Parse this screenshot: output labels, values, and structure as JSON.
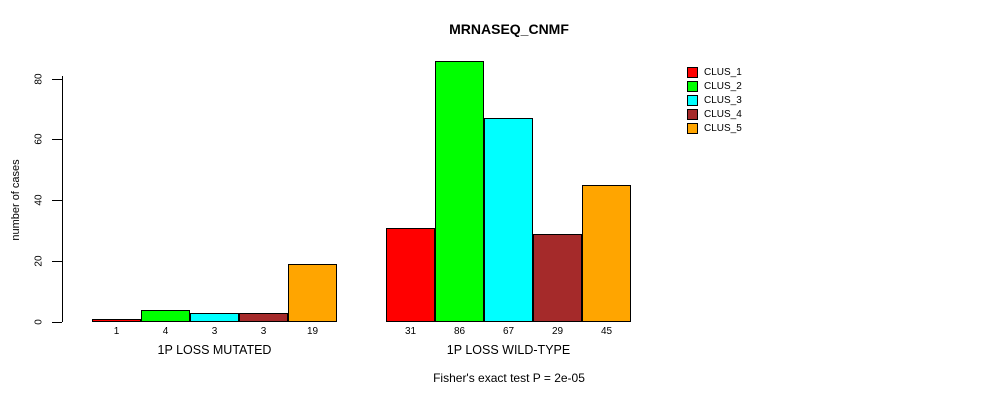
{
  "chart_data": {
    "type": "bar",
    "title": "MRNASEQ_CNMF",
    "ylabel": "number of cases",
    "yticks": [
      0,
      20,
      40,
      60,
      80
    ],
    "ylim": [
      0,
      86
    ],
    "grid": false,
    "legend_position": "top-right",
    "categories": [
      "1P LOSS MUTATED",
      "1P LOSS WILD-TYPE"
    ],
    "series": [
      {
        "name": "CLUS_1",
        "color": "#FF0000",
        "values": [
          1,
          31
        ]
      },
      {
        "name": "CLUS_2",
        "color": "#00FF00",
        "values": [
          4,
          86
        ]
      },
      {
        "name": "CLUS_3",
        "color": "#00FFFF",
        "values": [
          3,
          67
        ]
      },
      {
        "name": "CLUS_4",
        "color": "#A52A2A",
        "values": [
          3,
          29
        ]
      },
      {
        "name": "CLUS_5",
        "color": "#FFA500",
        "values": [
          19,
          45
        ]
      }
    ],
    "bar_value_labels_shown": true,
    "annotation": "Fisher's exact test P = 2e-05"
  }
}
